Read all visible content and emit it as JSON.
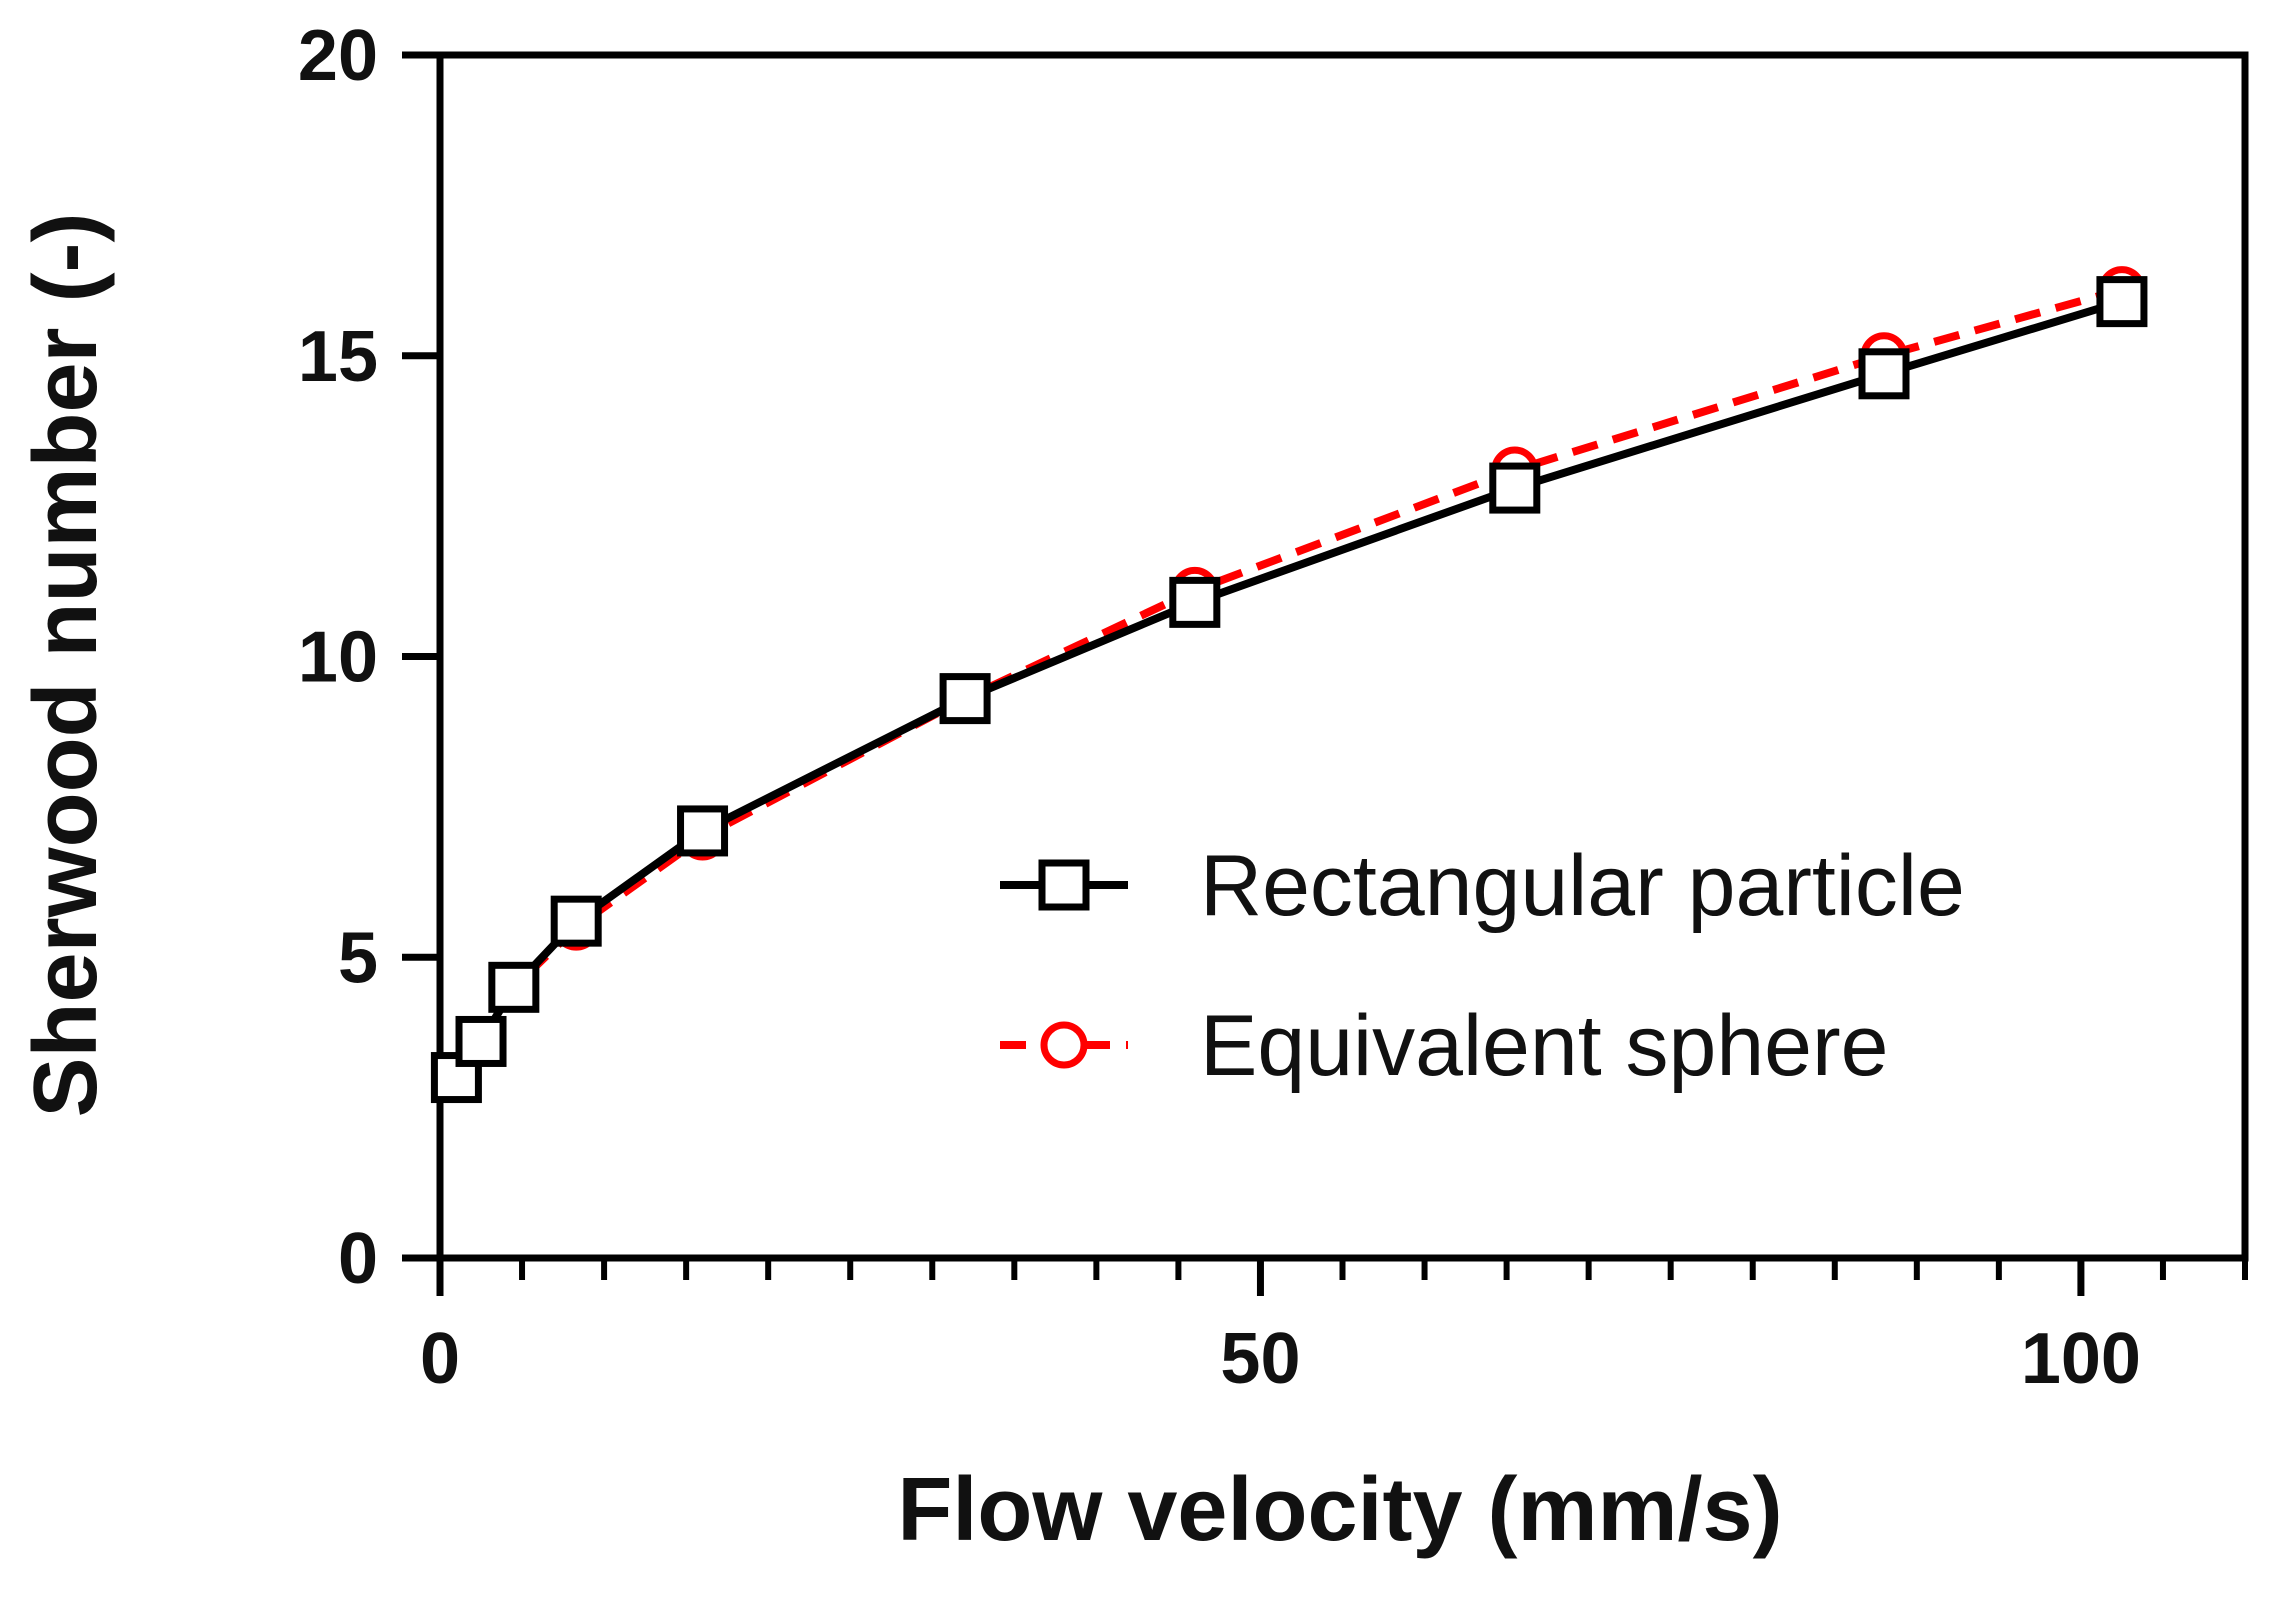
{
  "chart_data": {
    "type": "line",
    "title": "",
    "xlabel": "Flow velocity (mm/s)",
    "ylabel": "Sherwood number (-)",
    "xlim": [
      0,
      110
    ],
    "ylim": [
      0,
      20
    ],
    "x_major_ticks": [
      0,
      50,
      100
    ],
    "x_minor_step": 5,
    "y_major_ticks": [
      0,
      5,
      10,
      15,
      20
    ],
    "grid": false,
    "legend_position": "center-right",
    "series": [
      {
        "name": "Rectangular particle",
        "color": "#000000",
        "line_style": "solid",
        "marker": "square",
        "x": [
          1.0,
          2.5,
          4.5,
          8.3,
          16.0,
          32.0,
          46.0,
          65.5,
          88.0,
          102.5
        ],
        "values": [
          3.0,
          3.6,
          4.5,
          5.6,
          7.1,
          9.3,
          10.9,
          12.8,
          14.7,
          15.9
        ]
      },
      {
        "name": "Equivalent sphere",
        "color": "#ff0000",
        "line_style": "dashed",
        "marker": "circle",
        "x": [
          1.0,
          2.5,
          4.5,
          8.3,
          16.0,
          32.0,
          46.0,
          65.5,
          88.0,
          102.5
        ],
        "values": [
          3.0,
          3.6,
          4.5,
          5.5,
          7.0,
          9.3,
          11.1,
          13.1,
          15.0,
          16.1
        ]
      }
    ]
  }
}
